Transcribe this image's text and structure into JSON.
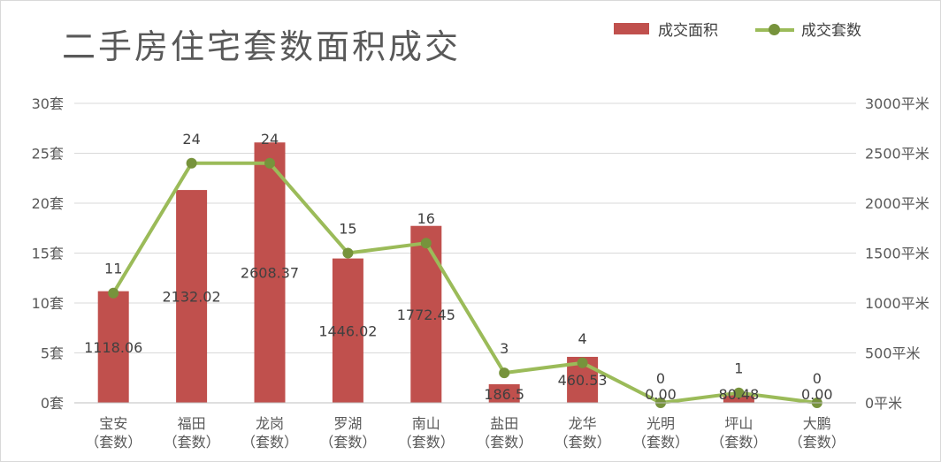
{
  "chart_data": {
    "type": "bar",
    "title": "二手房住宅套数面积成交",
    "categories": [
      {
        "name": "宝安",
        "sub": "（套数）"
      },
      {
        "name": "福田",
        "sub": "（套数）"
      },
      {
        "name": "龙岗",
        "sub": "（套数）"
      },
      {
        "name": "罗湖",
        "sub": "（套数）"
      },
      {
        "name": "南山",
        "sub": "（套数）"
      },
      {
        "name": "盐田",
        "sub": "（套数）"
      },
      {
        "name": "龙华",
        "sub": "（套数）"
      },
      {
        "name": "光明",
        "sub": "（套数）"
      },
      {
        "name": "坪山",
        "sub": "（套数）"
      },
      {
        "name": "大鹏",
        "sub": "（套数）"
      }
    ],
    "series": [
      {
        "name": "成交面积",
        "type": "bar",
        "axis": "right",
        "color": "#c0504d",
        "values": [
          1118.06,
          2132.02,
          2608.37,
          1446.02,
          1772.45,
          186.5,
          460.53,
          0,
          80.48,
          0
        ],
        "labels": [
          "1118.06",
          "2132.02",
          "2608.37",
          "1446.02",
          "1772.45",
          "186.5",
          "460.53",
          "0.00",
          "80.48",
          "0.00"
        ]
      },
      {
        "name": "成交套数",
        "type": "line",
        "axis": "left",
        "color": "#9bbb59",
        "marker_color": "#77933c",
        "values": [
          11,
          24,
          24,
          15,
          16,
          3,
          4,
          0,
          1,
          0
        ],
        "labels": [
          "11",
          "24",
          "24",
          "15",
          "16",
          "3",
          "4",
          "0",
          "1",
          "0"
        ]
      }
    ],
    "y_left": {
      "min": 0,
      "max": 30,
      "ticks": [
        0,
        5,
        10,
        15,
        20,
        25,
        30
      ],
      "tick_labels": [
        "0套",
        "5套",
        "10套",
        "15套",
        "20套",
        "25套",
        "30套"
      ]
    },
    "y_right": {
      "min": 0,
      "max": 3000,
      "ticks": [
        0,
        500,
        1000,
        1500,
        2000,
        2500,
        3000
      ],
      "tick_labels": [
        "0平米",
        "500平米",
        "1000平米",
        "1500平米",
        "2000平米",
        "2500平米",
        "3000平米"
      ]
    },
    "grid": true,
    "legend_position": "top-right"
  }
}
